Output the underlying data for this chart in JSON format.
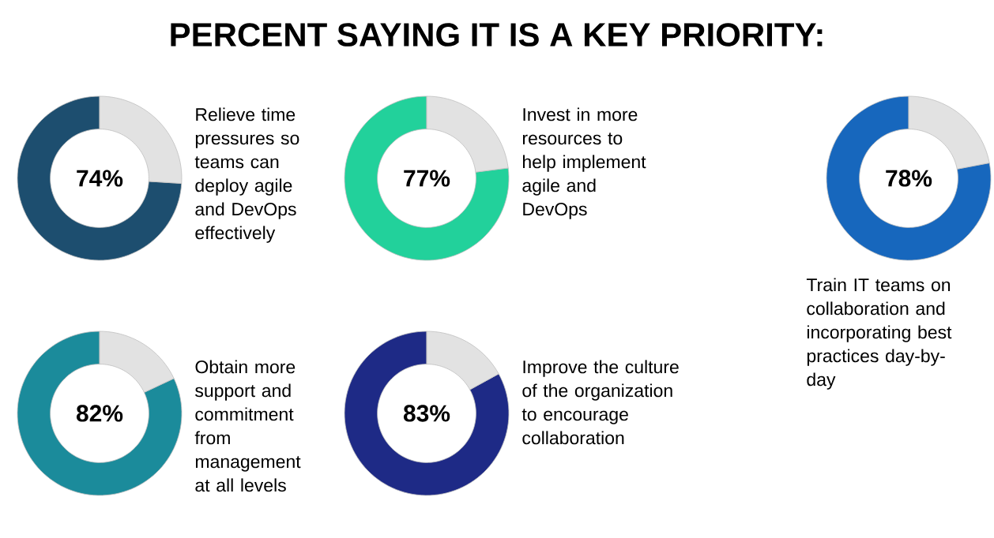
{
  "chart_data": [
    {
      "type": "donut",
      "categories": [
        null,
        null
      ],
      "values": [
        74,
        26
      ],
      "colors": [
        "#1d4e6f",
        "#e2e2e2"
      ],
      "value_labels": [
        "74%",
        null
      ],
      "annotations": [
        "Relieve time pressures so teams can deploy agile and DevOps effectively"
      ]
    },
    {
      "type": "donut",
      "title": "PERCENT SAYING IT IS A KEY PRIORITY:",
      "categories": [
        null,
        null
      ],
      "values": [
        77,
        23
      ],
      "colors": [
        "#22d19b",
        "#e2e2e2"
      ],
      "value_labels": [
        "77%",
        null
      ],
      "annotations": [
        "Invest in more resources to help implement agile and DevOps"
      ]
    },
    {
      "type": "donut",
      "categories": [
        null,
        null
      ],
      "values": [
        78,
        22
      ],
      "colors": [
        "#1767bd",
        "#e2e2e2"
      ],
      "value_labels": [
        "78%",
        null
      ],
      "annotations": [
        "Train IT teams on collaboration and incorporating best practices day-by-day"
      ]
    },
    {
      "type": "donut",
      "categories": [
        null,
        null
      ],
      "values": [
        82,
        18
      ],
      "colors": [
        "#1b8b9b",
        "#e2e2e2"
      ],
      "value_labels": [
        "82%",
        null
      ],
      "annotations": [
        "Obtain more support and commitment from management at all levels"
      ]
    },
    {
      "type": "donut",
      "categories": [
        null,
        null
      ],
      "values": [
        83,
        17
      ],
      "colors": [
        "#1e2a86",
        "#e2e2e2"
      ],
      "value_labels": [
        "83%",
        null
      ],
      "annotations": [
        "Improve the culture of the organization to encourage collaboration"
      ]
    }
  ]
}
